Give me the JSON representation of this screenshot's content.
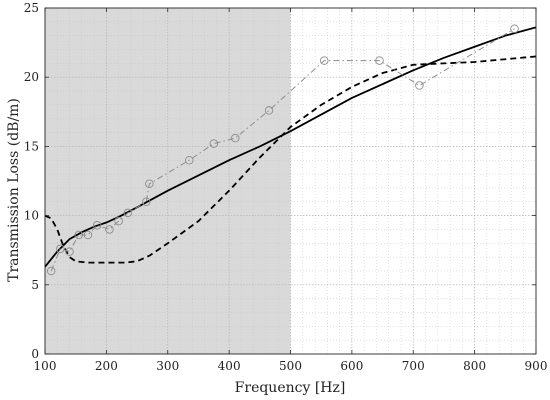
{
  "chart_data": {
    "type": "line",
    "title": "",
    "xlabel": "Frequency [Hz]",
    "ylabel": "Transmission Loss (dB/m)",
    "xlim": [
      100,
      900
    ],
    "ylim": [
      0,
      25
    ],
    "x_ticks": [
      100,
      200,
      300,
      400,
      500,
      600,
      700,
      800,
      900
    ],
    "y_ticks": [
      0,
      5,
      10,
      15,
      20,
      25
    ],
    "grid": true,
    "minor_grid": true,
    "shaded_region": {
      "x_range": [
        100,
        500
      ],
      "color": "#d9d9d9"
    },
    "series": [
      {
        "style": "solid",
        "color": "#000000",
        "x": [
          100,
          120,
          140,
          160,
          180,
          200,
          220,
          250,
          300,
          350,
          400,
          450,
          500,
          550,
          600,
          650,
          700,
          750,
          800,
          850,
          900
        ],
        "y": [
          6.3,
          7.4,
          8.3,
          8.8,
          9.2,
          9.5,
          9.9,
          10.6,
          11.8,
          12.9,
          14.0,
          15.0,
          16.1,
          17.3,
          18.5,
          19.5,
          20.5,
          21.4,
          22.2,
          23.0,
          23.6
        ]
      },
      {
        "style": "dashed",
        "color": "#000000",
        "x": [
          100,
          110,
          120,
          130,
          140,
          150,
          170,
          200,
          230,
          250,
          270,
          300,
          350,
          400,
          450,
          500,
          550,
          600,
          650,
          700,
          750,
          800,
          850,
          900
        ],
        "y": [
          10.0,
          9.8,
          9.0,
          7.8,
          7.0,
          6.7,
          6.6,
          6.6,
          6.6,
          6.7,
          7.1,
          8.0,
          9.6,
          11.8,
          14.2,
          16.4,
          18.0,
          19.3,
          20.3,
          20.9,
          21.0,
          21.1,
          21.3,
          21.5
        ]
      },
      {
        "style": "dash-dot",
        "color": "#8c8c8c",
        "marker": "circle",
        "x": [
          110,
          125,
          140,
          155,
          170,
          185,
          205,
          220,
          235,
          265,
          270,
          335,
          375,
          410,
          465,
          555,
          645,
          710,
          865
        ],
        "y": [
          6.0,
          7.6,
          7.4,
          8.6,
          8.6,
          9.3,
          9.0,
          9.6,
          10.2,
          11.0,
          12.3,
          14.0,
          15.2,
          15.6,
          17.6,
          21.2,
          21.2,
          19.4,
          23.5
        ]
      }
    ]
  }
}
